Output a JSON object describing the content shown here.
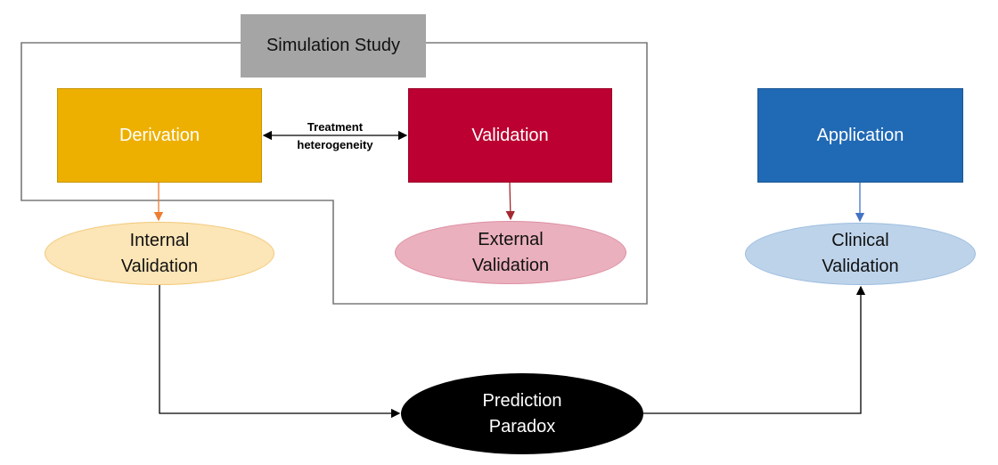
{
  "simulation_study": {
    "label": "Simulation Study"
  },
  "nodes": {
    "derivation": {
      "label": "Derivation",
      "color": "#eeb000"
    },
    "validation": {
      "label": "Validation",
      "color": "#bc0031"
    },
    "application": {
      "label": "Application",
      "color": "#2069b5"
    }
  },
  "outcomes": {
    "internal_validation": {
      "line1": "Internal",
      "line2": "Validation",
      "color": "#fce5b6"
    },
    "external_validation": {
      "line1": "External",
      "line2": "Validation",
      "color": "#eab0bd"
    },
    "clinical_validation": {
      "line1": "Clinical",
      "line2": "Validation",
      "color": "#bdd3ea"
    }
  },
  "prediction_paradox": {
    "line1": "Prediction",
    "line2": "Paradox",
    "color": "#000000"
  },
  "edge_labels": {
    "treatment_heterogeneity": {
      "line1": "Treatment",
      "line2": "heterogeneity"
    }
  }
}
